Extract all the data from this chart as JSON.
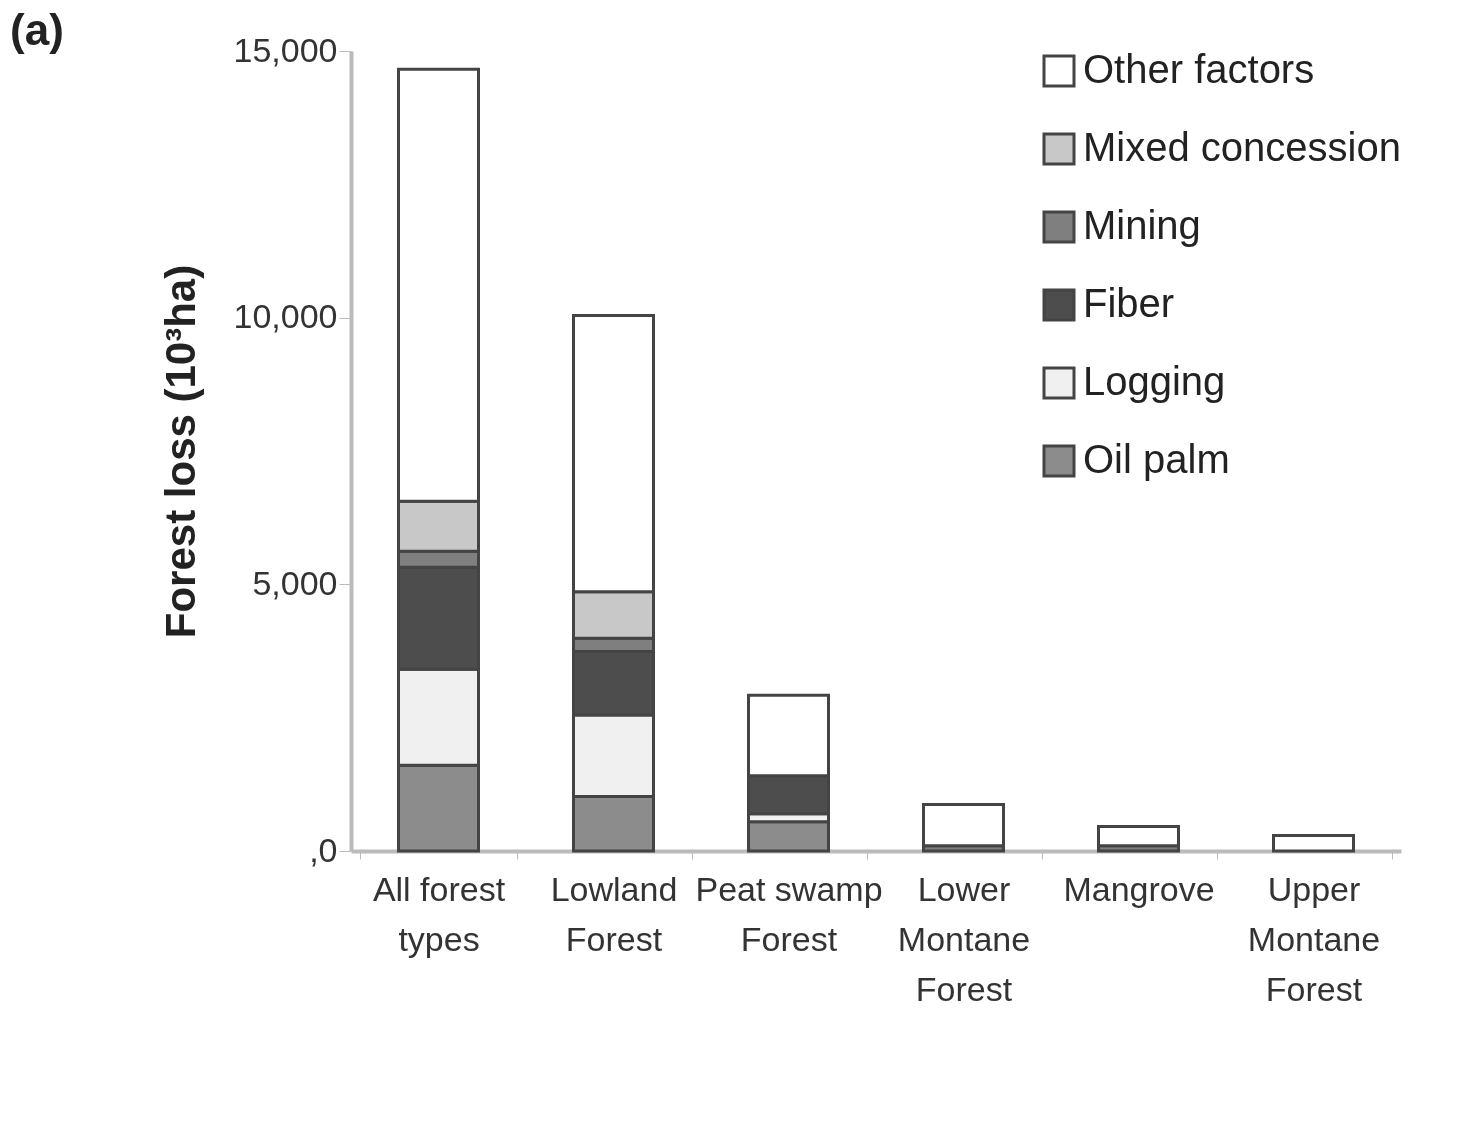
{
  "chart_data": {
    "type": "bar",
    "title": "(a)",
    "ylabel": "Forest loss (10³ha)",
    "categories": [
      "All forest types",
      "Lowland Forest",
      "Peat swamp Forest",
      "Lower Montane Forest",
      "Mangrove",
      "Upper Montane Forest"
    ],
    "stacked": true,
    "series": [
      {
        "name": "Oil palm",
        "color": "#8c8c8c",
        "values": [
          1610,
          1020,
          550,
          null,
          null,
          null
        ]
      },
      {
        "name": "Logging",
        "color": "#f0f0f0",
        "values": [
          1800,
          1530,
          150,
          null,
          null,
          null
        ]
      },
      {
        "name": "Fiber",
        "color": "#4d4d4d",
        "values": [
          1910,
          1190,
          710,
          null,
          null,
          null
        ]
      },
      {
        "name": "Mining",
        "color": "#7f7f7f",
        "values": [
          300,
          250,
          null,
          100,
          100,
          null
        ]
      },
      {
        "name": "Mixed concession",
        "color": "#c8c8c8",
        "values": [
          940,
          870,
          null,
          null,
          null,
          null
        ]
      },
      {
        "name": "Other factors",
        "color": "#ffffff",
        "values": [
          8100,
          5180,
          1510,
          770,
          360,
          290
        ]
      }
    ],
    "ylim": [
      0,
      15000
    ],
    "yticks": [
      {
        "value": 0,
        "label": ",0"
      },
      {
        "value": 5000,
        "label": "5,000"
      },
      {
        "value": 10000,
        "label": "10,000"
      },
      {
        "value": 15000,
        "label": "15,000"
      }
    ],
    "grid": false,
    "legend": "top right"
  }
}
